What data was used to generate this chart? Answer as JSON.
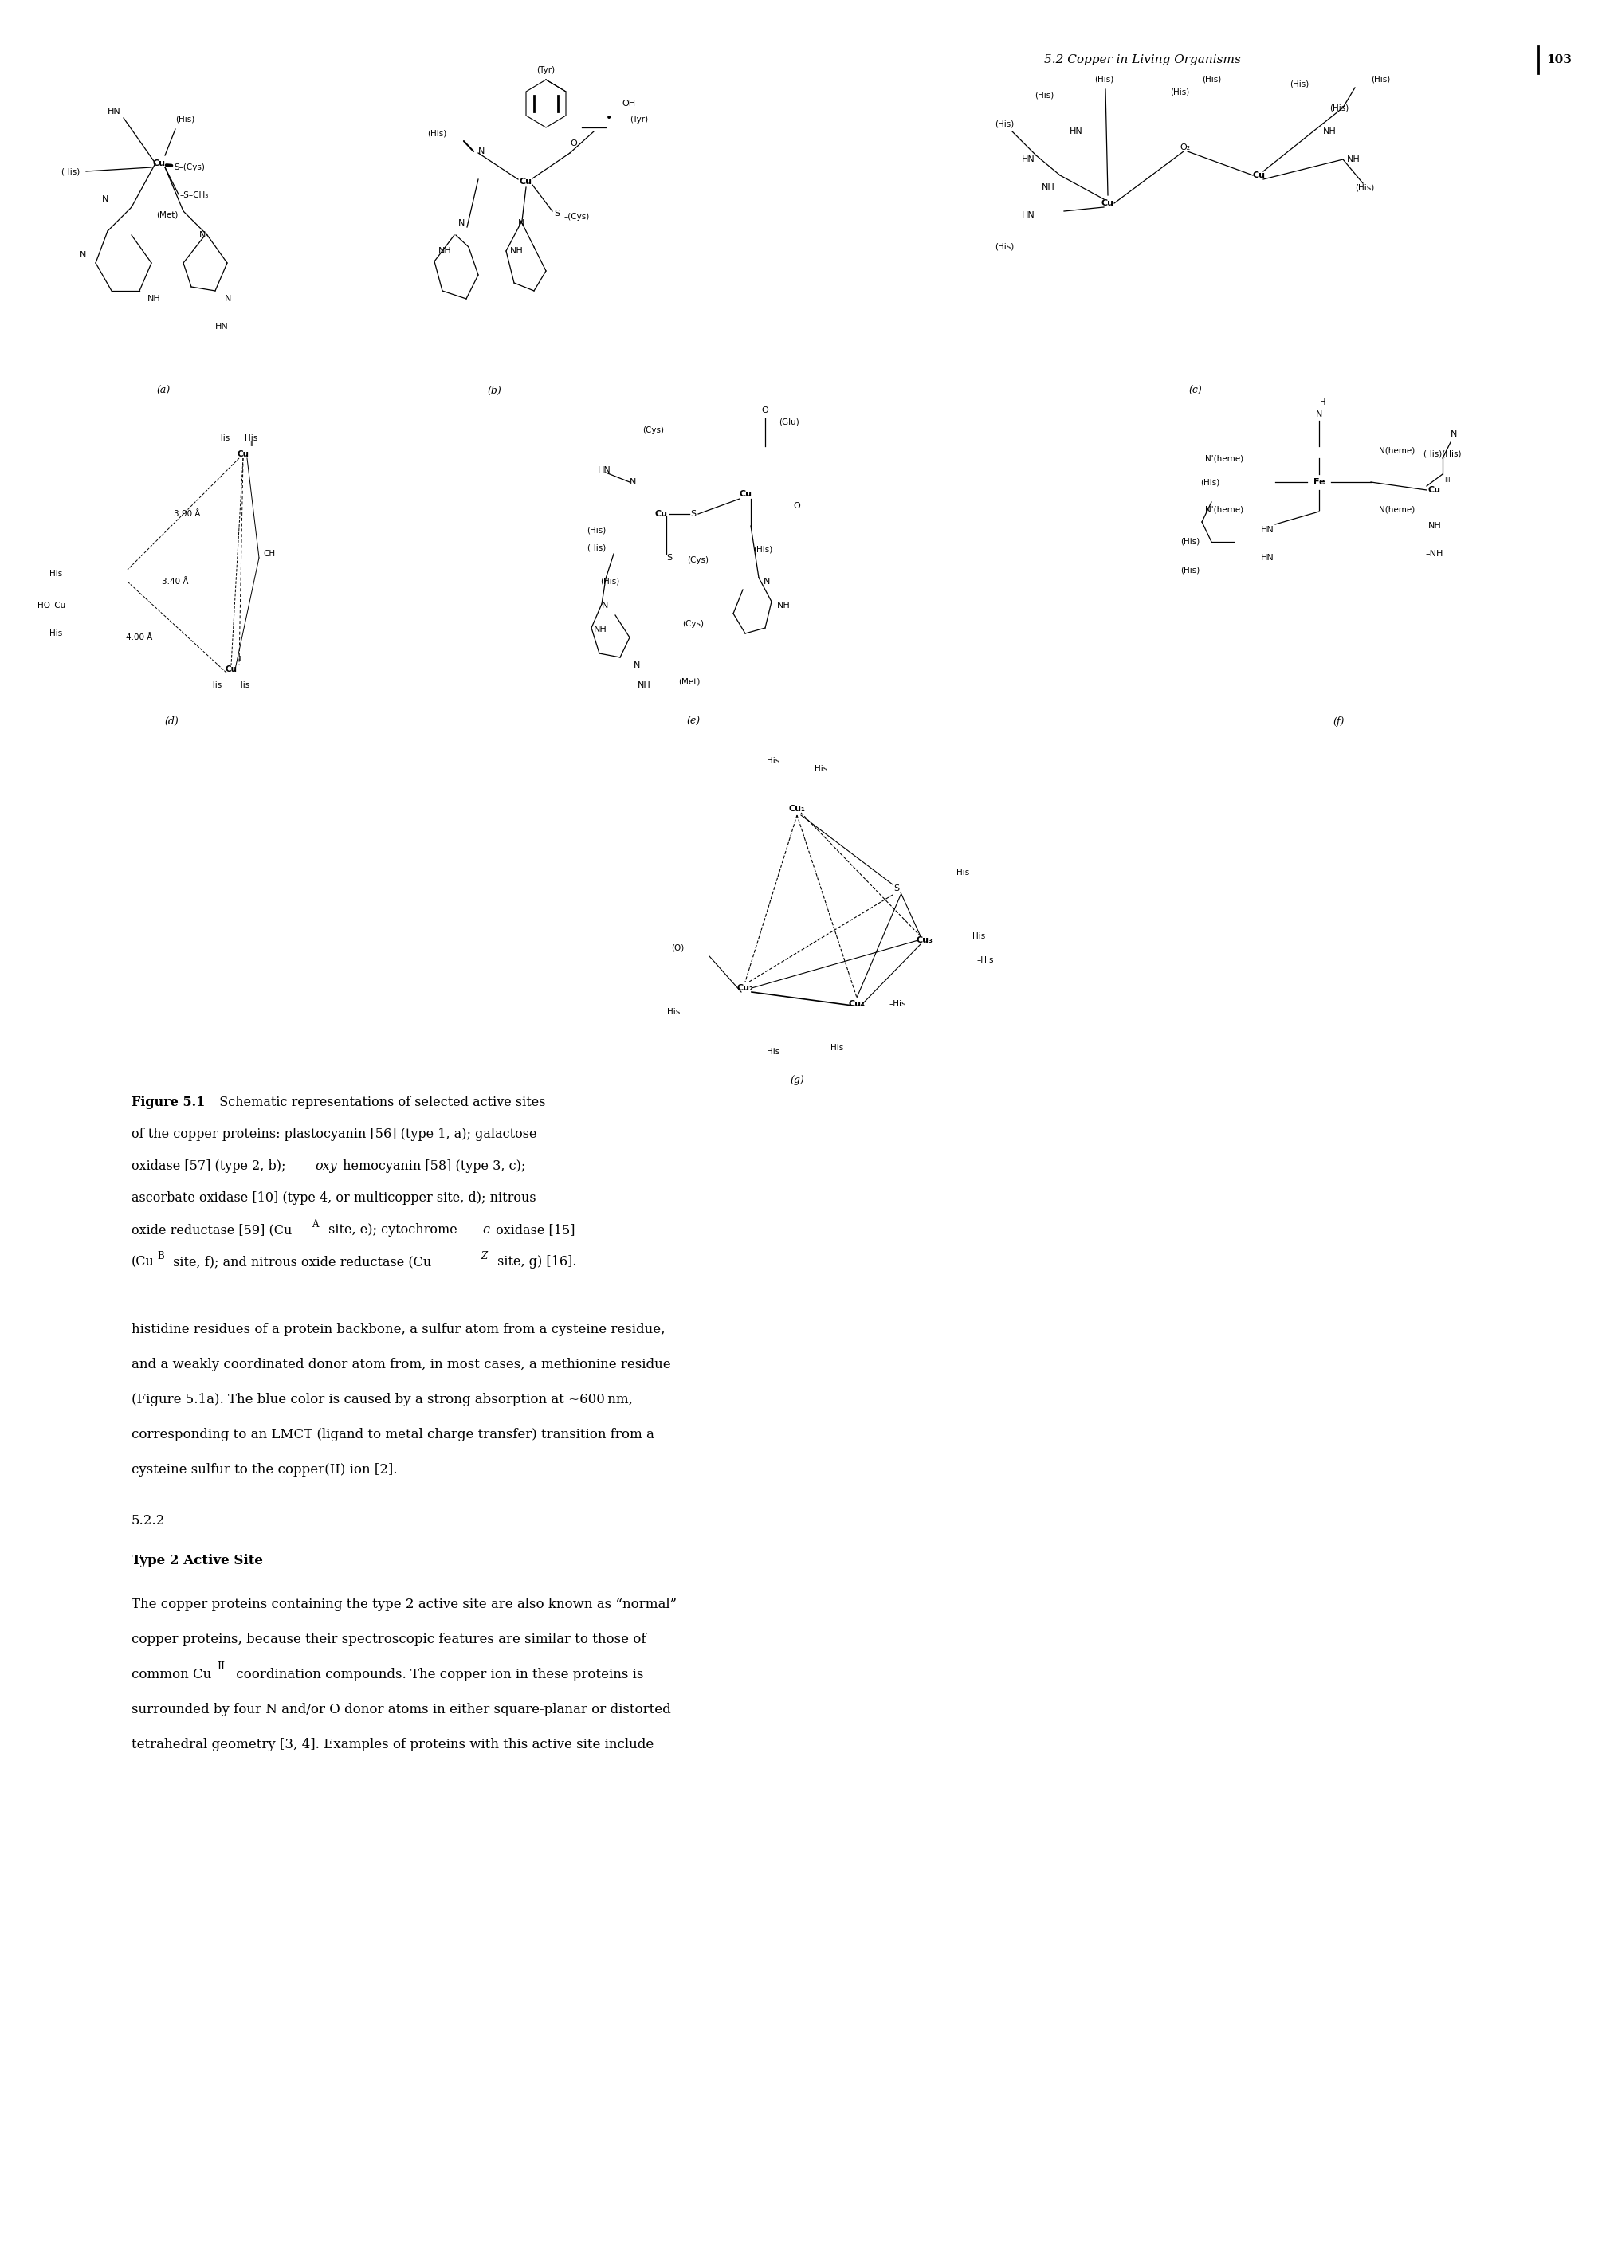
{
  "bg": "#ffffff",
  "header_text": "5.2 Copper in Living Organisms",
  "header_page": "103",
  "caption_bold": "Figure 5.1",
  "caption_rest_line1": "  Schematic representations of selected active sites",
  "caption_line2": "of the copper proteins: plastocyanin [56] (type 1, a); galactose",
  "caption_line3": "oxidase [57] (type 2, b); ",
  "caption_line3b": "oxy",
  "caption_line3c": " hemocyanin [58] (type 3, c);",
  "caption_line4": "ascorbate oxidase [10] (type 4, or multicopper site, d); nitrous",
  "caption_line5a": "oxide reductase [59] (Cu",
  "caption_line5b": "A",
  "caption_line5c": " site, e); cytochrome ",
  "caption_line5d": "c",
  "caption_line5e": " oxidase [15]",
  "caption_line6a": "(Cu",
  "caption_line6b": "B",
  "caption_line6c": " site, f); and nitrous oxide reductase (Cu",
  "caption_line6d": "Z",
  "caption_line6e": " site, g) [16].",
  "body1_lines": [
    "histidine residues of a protein backbone, a sulfur atom from a cysteine residue,",
    "and a weakly coordinated donor atom from, in most cases, a methionine residue",
    "(Figure 5.1a). The blue color is caused by a strong absorption at ~600 nm,",
    "corresponding to an LMCT (ligand to metal charge transfer) transition from a",
    "cysteine sulfur to the copper(II) ion [2]."
  ],
  "section_num": "5.2.2",
  "section_title": "Type 2 Active Site",
  "body2_line1": "The copper proteins containing the type 2 active site are also known as “normal”",
  "body2_line2": "copper proteins, because their spectroscopic features are similar to those of",
  "body2_line3a": "common Cu",
  "body2_line3b": "II",
  "body2_line3c": " coordination compounds. The copper ion in these proteins is",
  "body2_line4": "surrounded by four N and/or O donor atoms in either square-planar or distorted",
  "body2_line5": "tetrahedral geometry [3, 4]. Examples of proteins with this active site include"
}
